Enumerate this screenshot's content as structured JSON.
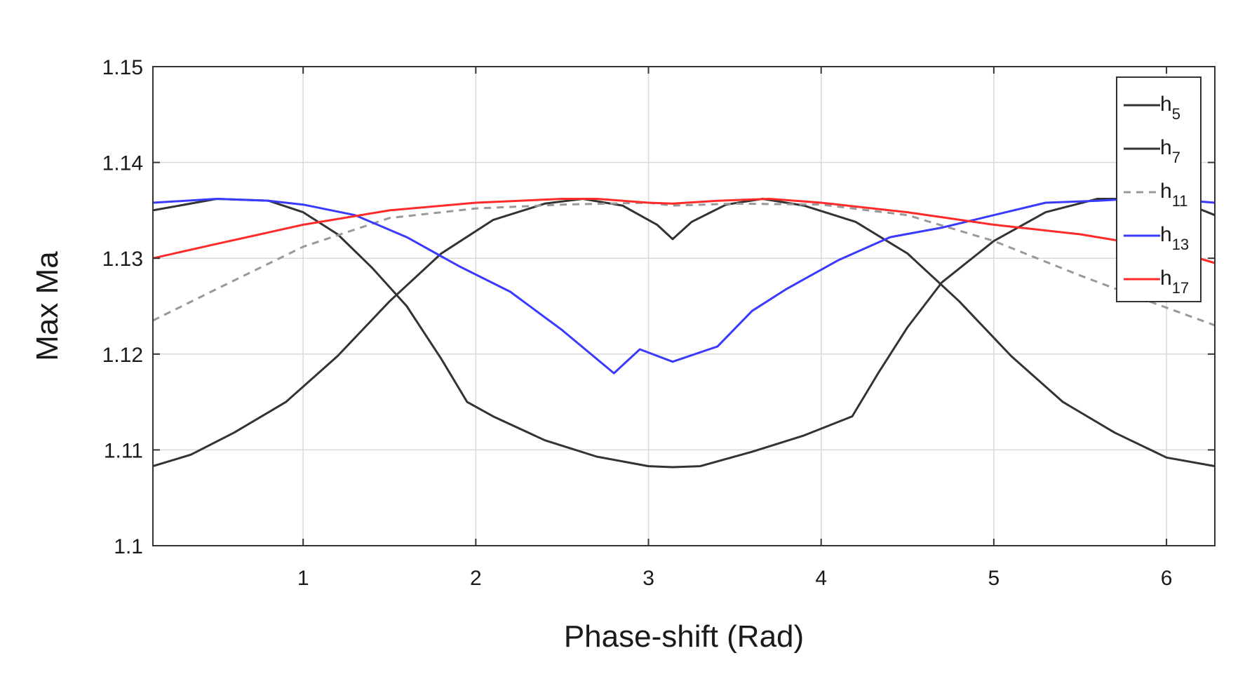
{
  "chart_data": {
    "type": "line",
    "title": "",
    "xlabel": "Phase-shift (Rad)",
    "ylabel": "Max Ma",
    "xlim": [
      0.13,
      6.28
    ],
    "ylim": [
      1.1,
      1.15
    ],
    "xticks": [
      1,
      2,
      3,
      4,
      5,
      6
    ],
    "yticks": [
      1.1,
      1.11,
      1.12,
      1.13,
      1.14,
      1.15
    ],
    "xtick_labels": [
      "1",
      "2",
      "3",
      "4",
      "5",
      "6"
    ],
    "ytick_labels": [
      "1.1",
      "1.11",
      "1.12",
      "1.13",
      "1.14",
      "1.15"
    ],
    "grid": true,
    "legend_position": "top-right",
    "series": [
      {
        "name": "h5",
        "label_base": "h",
        "label_sub": "5",
        "color": "#333333",
        "dash": "solid",
        "x": [
          0.13,
          0.5,
          0.8,
          1.0,
          1.2,
          1.4,
          1.6,
          1.8,
          1.95,
          2.1,
          2.4,
          2.7,
          3.0,
          3.14,
          3.3,
          3.6,
          3.9,
          4.18,
          4.33,
          4.5,
          4.7,
          5.0,
          5.3,
          5.6,
          5.9,
          6.1,
          6.28
        ],
        "y": [
          1.135,
          1.1362,
          1.136,
          1.1348,
          1.1325,
          1.129,
          1.125,
          1.1195,
          1.115,
          1.1135,
          1.111,
          1.1093,
          1.1083,
          1.1082,
          1.1083,
          1.1098,
          1.1115,
          1.1135,
          1.118,
          1.1228,
          1.1275,
          1.1318,
          1.1348,
          1.1362,
          1.1362,
          1.1358,
          1.1345
        ]
      },
      {
        "name": "h7",
        "label_base": "h",
        "label_sub": "7",
        "color": "#333333",
        "dash": "solid",
        "x": [
          0.13,
          0.35,
          0.6,
          0.9,
          1.2,
          1.5,
          1.8,
          2.1,
          2.4,
          2.62,
          2.85,
          3.05,
          3.14,
          3.25,
          3.45,
          3.66,
          3.9,
          4.2,
          4.5,
          4.8,
          5.1,
          5.4,
          5.7,
          6.0,
          6.28
        ],
        "y": [
          1.1083,
          1.1095,
          1.1118,
          1.115,
          1.1198,
          1.1255,
          1.1305,
          1.134,
          1.1357,
          1.1362,
          1.1355,
          1.1335,
          1.132,
          1.1338,
          1.1356,
          1.1362,
          1.1355,
          1.1338,
          1.1305,
          1.1255,
          1.1198,
          1.115,
          1.1118,
          1.1092,
          1.1083
        ]
      },
      {
        "name": "h11",
        "label_base": "h",
        "label_sub": "11",
        "color": "#999999",
        "dash": "dashed",
        "x": [
          0.13,
          0.5,
          1.0,
          1.5,
          2.0,
          2.5,
          3.0,
          3.14,
          3.5,
          4.0,
          4.5,
          5.0,
          5.5,
          5.9,
          6.28
        ],
        "y": [
          1.1235,
          1.1268,
          1.1312,
          1.1342,
          1.1352,
          1.1356,
          1.1358,
          1.1355,
          1.1357,
          1.1356,
          1.1345,
          1.1318,
          1.1282,
          1.1255,
          1.123
        ]
      },
      {
        "name": "h13",
        "label_base": "h",
        "label_sub": "13",
        "color": "#3a3aff",
        "dash": "solid",
        "x": [
          0.13,
          0.5,
          0.8,
          1.0,
          1.3,
          1.6,
          1.9,
          2.2,
          2.5,
          2.8,
          2.95,
          3.14,
          3.4,
          3.6,
          3.8,
          4.1,
          4.4,
          4.7,
          5.0,
          5.3,
          5.6,
          5.8,
          6.0,
          6.28
        ],
        "y": [
          1.1358,
          1.1362,
          1.136,
          1.1356,
          1.1345,
          1.1322,
          1.1292,
          1.1265,
          1.1225,
          1.118,
          1.1205,
          1.1192,
          1.1208,
          1.1245,
          1.1268,
          1.1298,
          1.1322,
          1.1332,
          1.1345,
          1.1358,
          1.136,
          1.1362,
          1.1362,
          1.1358
        ]
      },
      {
        "name": "h17",
        "label_base": "h",
        "label_sub": "17",
        "color": "#ff2a2a",
        "dash": "solid",
        "x": [
          0.13,
          0.5,
          1.0,
          1.5,
          2.0,
          2.5,
          2.7,
          3.0,
          3.14,
          3.4,
          3.7,
          4.0,
          4.5,
          5.0,
          5.5,
          6.0,
          6.28
        ],
        "y": [
          1.13,
          1.1315,
          1.1335,
          1.135,
          1.1358,
          1.1362,
          1.1362,
          1.1358,
          1.1357,
          1.136,
          1.1362,
          1.1358,
          1.1348,
          1.1335,
          1.1325,
          1.131,
          1.1295
        ]
      }
    ]
  }
}
